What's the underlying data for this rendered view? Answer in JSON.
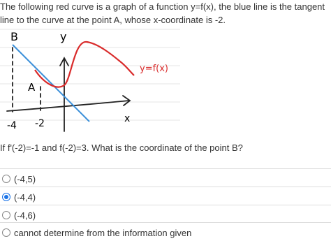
{
  "question": {
    "text": "The following red curve is a graph of a function y=f(x), the blue line is the tangent line to the curve at the point A, whose x-coordinate is -2.",
    "prompt": "If f'(-2)=-1 and f(-2)=3. What is the coordinate of the point B?"
  },
  "figure": {
    "labels": {
      "b": "B",
      "y": "y",
      "a": "A",
      "curve": "y=f(x)",
      "x": "x",
      "x1": "-4",
      "x2": "-2"
    }
  },
  "options": [
    "(-4,5)",
    "(-4,4)",
    "(-4,6)",
    "cannot determine from the information given"
  ],
  "selected": 1
}
